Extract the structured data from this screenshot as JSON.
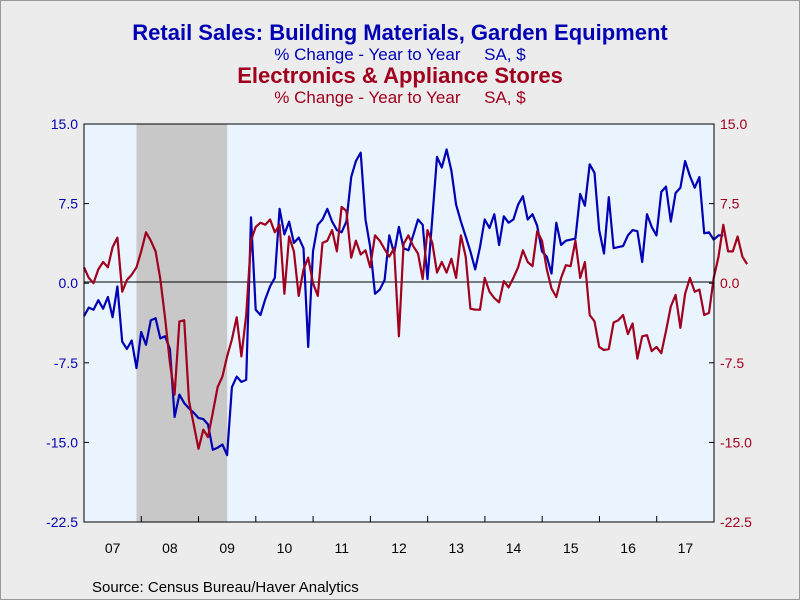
{
  "chart_data": {
    "type": "line",
    "title_1": "Retail Sales: Building Materials, Garden Equipment",
    "subtitle_1": "% Change - Year to Year     SA, $",
    "title_2": "Electronics & Appliance Stores",
    "subtitle_2": "% Change - Year to Year     SA, $",
    "source": "Source:  Census Bureau/Haver Analytics",
    "x_start": 2007.0,
    "x_end": 2018.0,
    "x_step": 0.0833,
    "ylim": [
      -22.5,
      15.0
    ],
    "y_ticks": [
      15.0,
      7.5,
      0.0,
      -7.5,
      -15.0,
      -22.5
    ],
    "y_tick_labels_left": [
      "15.0",
      "7.5",
      "0.0",
      "-7.5",
      "-15.0",
      "-22.5"
    ],
    "y_tick_labels_right": [
      "15.0",
      "7.5",
      "0.0",
      "-7.5",
      "-15.0",
      "-22.5"
    ],
    "x_tick_labels": [
      "07",
      "08",
      "09",
      "10",
      "11",
      "12",
      "13",
      "14",
      "15",
      "16",
      "17"
    ],
    "recession": [
      2007.917,
      2009.5
    ],
    "colors": {
      "blue": "#0000B4",
      "red": "#A0001E",
      "background": "#EAF4FF",
      "recession": "#C8C8C8",
      "page": "#ECECEC"
    },
    "series": [
      {
        "name": "Retail Sales: Building Materials, Garden Equipment",
        "color": "#0000B4",
        "values": [
          -3.1,
          -2.3,
          -2.5,
          -1.6,
          -2.4,
          -1.3,
          -3.2,
          -0.3,
          -5.5,
          -6.2,
          -5.4,
          -8.0,
          -4.6,
          -5.8,
          -3.5,
          -3.3,
          -5.2,
          -5.0,
          -6.2,
          -12.6,
          -10.5,
          -11.3,
          -11.8,
          -12.2,
          -12.7,
          -12.8,
          -13.3,
          -15.7,
          -15.5,
          -15.2,
          -16.2,
          -9.8,
          -8.8,
          -9.3,
          -9.1,
          6.2,
          -2.5,
          -3.0,
          -1.5,
          -0.3,
          0.5,
          7.0,
          4.6,
          5.8,
          3.8,
          4.3,
          3.3,
          -6.0,
          3.0,
          5.5,
          6.0,
          7.0,
          5.8,
          5.0,
          4.8,
          5.8,
          10.0,
          11.5,
          12.3,
          6.0,
          3.4,
          -1.0,
          -0.6,
          0.3,
          4.5,
          2.8,
          5.3,
          3.3,
          3.1,
          4.5,
          6.0,
          5.5,
          0.4,
          6.1,
          11.9,
          10.9,
          12.6,
          10.6,
          7.4,
          5.8,
          4.4,
          3.0,
          1.3,
          3.4,
          6.0,
          5.2,
          6.5,
          3.6,
          6.3,
          5.7,
          6.0,
          7.4,
          8.2,
          6.0,
          6.5,
          5.4,
          3.0,
          2.5,
          0.9,
          5.7,
          3.6,
          4.0,
          4.1,
          4.2,
          8.4,
          7.3,
          11.2,
          10.4,
          5.0,
          2.8,
          8.1,
          3.3,
          3.4,
          3.5,
          4.5,
          5.0,
          4.9,
          2.0,
          6.5,
          5.3,
          4.5,
          8.6,
          9.1,
          5.8,
          8.5,
          9.0,
          11.5,
          10.1,
          9.0,
          10.0,
          4.7,
          4.8,
          4.1,
          4.5,
          4.5
        ]
      },
      {
        "name": "Electronics & Appliance Stores",
        "color": "#A0001E",
        "values": [
          1.5,
          0.5,
          0.0,
          1.3,
          2.0,
          1.5,
          3.4,
          4.3,
          -0.8,
          0.3,
          0.8,
          1.5,
          3.0,
          4.8,
          4.0,
          3.0,
          0.4,
          -3.3,
          -7.5,
          -10.5,
          -3.6,
          -3.5,
          -11.1,
          -13.3,
          -15.6,
          -13.8,
          -14.5,
          -12.2,
          -9.8,
          -8.8,
          -6.9,
          -5.3,
          -3.2,
          -6.9,
          -3.0,
          4.0,
          5.3,
          5.7,
          5.5,
          6.0,
          4.8,
          5.5,
          -1.0,
          4.4,
          3.0,
          -1.2,
          1.3,
          2.4,
          0.0,
          -1.2,
          3.8,
          4.0,
          5.0,
          3.0,
          7.2,
          6.8,
          2.4,
          4.0,
          2.7,
          3.1,
          1.5,
          4.5,
          4.0,
          3.2,
          2.5,
          3.3,
          -5.0,
          3.7,
          4.5,
          3.5,
          2.8,
          0.4,
          5.0,
          3.8,
          1.0,
          2.0,
          1.0,
          2.3,
          0.5,
          4.5,
          2.5,
          -2.4,
          -2.5,
          -2.5,
          0.5,
          -0.8,
          -1.4,
          -1.8,
          0.2,
          -0.4,
          0.5,
          1.5,
          3.1,
          2.0,
          1.6,
          4.9,
          4.0,
          1.3,
          -0.5,
          -1.3,
          0.5,
          1.7,
          1.6,
          4.0,
          0.5,
          2.0,
          -3.0,
          -3.6,
          -6.0,
          -6.3,
          -6.2,
          -3.7,
          -3.5,
          -3.0,
          -4.8,
          -3.8,
          -7.1,
          -5.0,
          -4.9,
          -6.4,
          -6.0,
          -6.6,
          -4.5,
          -2.2,
          -1.1,
          -4.2,
          -1.0,
          0.5,
          -0.8,
          -0.6,
          -3.0,
          -2.8,
          0.5,
          2.5,
          5.5,
          3.0,
          3.0,
          4.4,
          2.5,
          1.8
        ]
      }
    ]
  }
}
